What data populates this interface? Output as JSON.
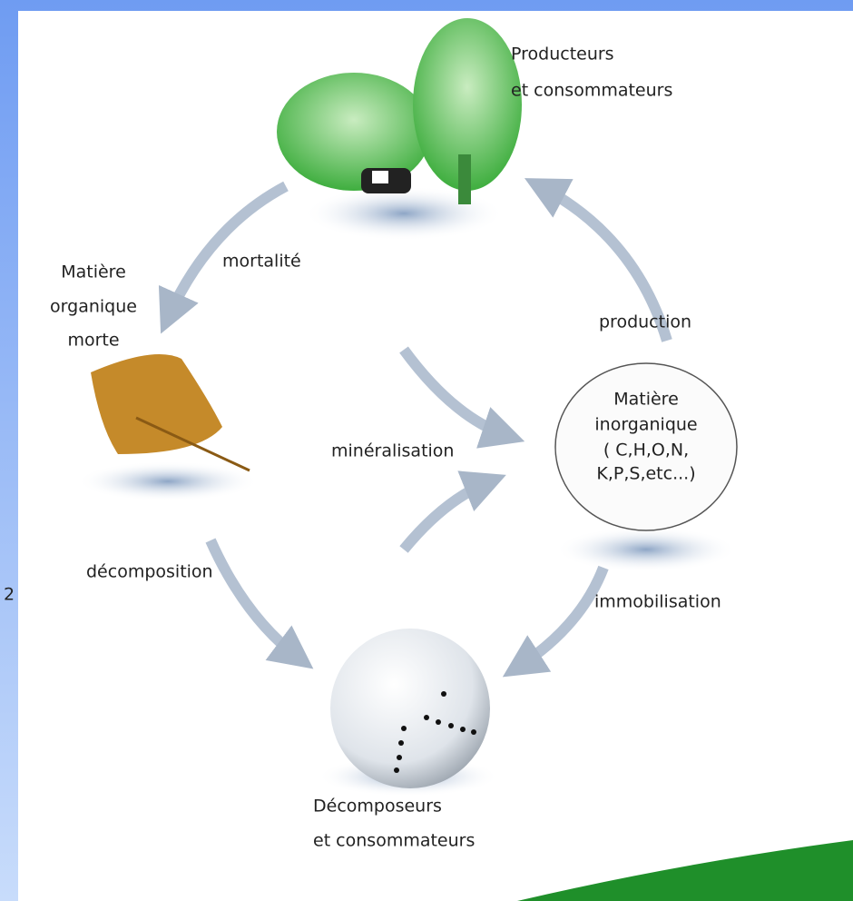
{
  "nodes": [
    {
      "label": [
        "Producteurs",
        "et  consommateurs"
      ]
    },
    {
      "label": [
        "Matière",
        "organique",
        "morte"
      ]
    },
    {
      "label": [
        "Matière",
        "inorganique",
        "( C,H,O,N,",
        "K,P,S,etc...)"
      ]
    },
    {
      "label": [
        "Décomposeurs",
        "et consommateurs"
      ]
    }
  ],
  "edges": [
    {
      "label": "mortalité"
    },
    {
      "label": "production"
    },
    {
      "label": "minéralisation"
    },
    {
      "label": "décomposition"
    },
    {
      "label": "immobilisation"
    }
  ],
  "side_text": "2"
}
